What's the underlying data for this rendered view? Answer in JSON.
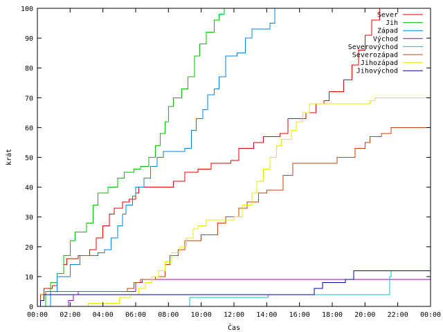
{
  "chart_data": {
    "type": "line",
    "title": "",
    "xlabel": "Čas",
    "ylabel": "krát",
    "xlim": [
      0,
      24
    ],
    "ylim": [
      0,
      100
    ],
    "x_ticks": [
      0,
      2,
      4,
      6,
      8,
      10,
      12,
      14,
      16,
      18,
      20,
      22,
      24
    ],
    "x_tick_labels": [
      "00:00",
      "02:00",
      "04:00",
      "06:00",
      "08:00",
      "10:00",
      "12:00",
      "14:00",
      "16:00",
      "18:00",
      "20:00",
      "22:00",
      "00:00"
    ],
    "y_ticks": [
      0,
      10,
      20,
      30,
      40,
      50,
      60,
      70,
      80,
      90,
      100
    ],
    "y_tick_labels": [
      "0",
      "10",
      "20",
      "30",
      "40",
      "50",
      "60",
      "70",
      "80",
      "90",
      "100"
    ],
    "grid": false,
    "legend_position": "top-right",
    "series": [
      {
        "name": "Sever",
        "color": "#e00000",
        "points": [
          [
            0,
            0
          ],
          [
            0.2,
            4
          ],
          [
            0.4,
            6
          ],
          [
            0.9,
            7
          ],
          [
            1.2,
            11
          ],
          [
            1.6,
            14
          ],
          [
            1.8,
            16
          ],
          [
            2.5,
            17
          ],
          [
            3.2,
            19
          ],
          [
            3.6,
            23
          ],
          [
            4.0,
            27
          ],
          [
            4.4,
            31
          ],
          [
            4.7,
            33
          ],
          [
            5.2,
            35
          ],
          [
            5.6,
            36
          ],
          [
            6.0,
            38
          ],
          [
            6.2,
            40
          ],
          [
            7.8,
            40
          ],
          [
            8.3,
            42
          ],
          [
            9.0,
            45
          ],
          [
            9.8,
            46
          ],
          [
            10.6,
            48
          ],
          [
            11.8,
            49
          ],
          [
            12.3,
            53
          ],
          [
            13.2,
            55
          ],
          [
            13.8,
            57
          ],
          [
            14.8,
            58
          ],
          [
            15.3,
            63
          ],
          [
            16.4,
            65
          ],
          [
            17.0,
            68
          ],
          [
            17.5,
            69
          ],
          [
            17.8,
            72
          ],
          [
            18.5,
            72
          ],
          [
            18.7,
            76
          ],
          [
            19.2,
            81
          ],
          [
            19.6,
            86
          ],
          [
            20.0,
            91
          ],
          [
            20.4,
            96
          ],
          [
            20.9,
            100
          ],
          [
            24,
            100
          ]
        ]
      },
      {
        "name": "Jih",
        "color": "#00c000",
        "points": [
          [
            0,
            0
          ],
          [
            0.3,
            0
          ],
          [
            0.5,
            4
          ],
          [
            0.8,
            8
          ],
          [
            1.2,
            11
          ],
          [
            1.6,
            17
          ],
          [
            2.0,
            22
          ],
          [
            2.3,
            25
          ],
          [
            3.0,
            28
          ],
          [
            3.4,
            34
          ],
          [
            3.7,
            38
          ],
          [
            4.3,
            40
          ],
          [
            4.9,
            43
          ],
          [
            5.3,
            45
          ],
          [
            5.9,
            46
          ],
          [
            6.3,
            47
          ],
          [
            6.8,
            50
          ],
          [
            7.2,
            54
          ],
          [
            7.5,
            58
          ],
          [
            7.8,
            62
          ],
          [
            8.0,
            67
          ],
          [
            8.3,
            70
          ],
          [
            8.8,
            73
          ],
          [
            9.2,
            77
          ],
          [
            9.6,
            84
          ],
          [
            9.9,
            88
          ],
          [
            10.3,
            92
          ],
          [
            10.8,
            96
          ],
          [
            11.1,
            98
          ],
          [
            11.4,
            100
          ],
          [
            24,
            100
          ]
        ]
      },
      {
        "name": "Západ",
        "color": "#0080e0",
        "points": [
          [
            0,
            0
          ],
          [
            0.5,
            0
          ],
          [
            0.8,
            5
          ],
          [
            1.2,
            10
          ],
          [
            2.0,
            14
          ],
          [
            2.6,
            17
          ],
          [
            3.7,
            18
          ],
          [
            4.1,
            19
          ],
          [
            4.5,
            23
          ],
          [
            4.9,
            27
          ],
          [
            5.2,
            31
          ],
          [
            5.4,
            34
          ],
          [
            5.8,
            37
          ],
          [
            6.0,
            40
          ],
          [
            6.5,
            43
          ],
          [
            6.9,
            47
          ],
          [
            7.3,
            50
          ],
          [
            7.7,
            52
          ],
          [
            9.0,
            53
          ],
          [
            9.4,
            59
          ],
          [
            9.7,
            63
          ],
          [
            10.1,
            66
          ],
          [
            10.4,
            71
          ],
          [
            10.8,
            73
          ],
          [
            11.1,
            77
          ],
          [
            11.5,
            84
          ],
          [
            12.2,
            85
          ],
          [
            12.7,
            90
          ],
          [
            13.1,
            93
          ],
          [
            14.2,
            95
          ],
          [
            14.5,
            100
          ],
          [
            24,
            100
          ]
        ]
      },
      {
        "name": "Východ",
        "color": "#a000c0",
        "points": [
          [
            0,
            0
          ],
          [
            1.8,
            0
          ],
          [
            1.9,
            2
          ],
          [
            2.2,
            4
          ],
          [
            2.5,
            5
          ],
          [
            5.9,
            5
          ],
          [
            6.0,
            8
          ],
          [
            6.4,
            9
          ],
          [
            16.5,
            9
          ],
          [
            24,
            9
          ]
        ]
      },
      {
        "name": "Severovýchod",
        "color": "#00c8c8",
        "points": [
          [
            0,
            0
          ],
          [
            9.2,
            0
          ],
          [
            9.3,
            3
          ],
          [
            14.0,
            3
          ],
          [
            14.1,
            4
          ],
          [
            21.3,
            4
          ],
          [
            21.5,
            10
          ],
          [
            21.6,
            12
          ],
          [
            24,
            12
          ]
        ]
      },
      {
        "name": "Severozápad",
        "color": "#c04000",
        "points": [
          [
            0,
            0
          ],
          [
            0.2,
            4
          ],
          [
            0.5,
            5
          ],
          [
            5.0,
            5
          ],
          [
            5.5,
            6
          ],
          [
            5.9,
            8
          ],
          [
            6.3,
            9
          ],
          [
            7.2,
            10
          ],
          [
            7.8,
            14
          ],
          [
            8.1,
            17
          ],
          [
            8.6,
            19
          ],
          [
            9.0,
            22
          ],
          [
            10.0,
            24
          ],
          [
            11.0,
            28
          ],
          [
            11.5,
            30
          ],
          [
            12.3,
            33
          ],
          [
            12.8,
            35
          ],
          [
            13.5,
            38
          ],
          [
            14.0,
            39
          ],
          [
            15.0,
            44
          ],
          [
            15.6,
            48
          ],
          [
            17.4,
            48
          ],
          [
            18.3,
            50
          ],
          [
            19.4,
            53
          ],
          [
            20.0,
            55
          ],
          [
            20.3,
            57
          ],
          [
            21.0,
            58
          ],
          [
            21.6,
            60
          ],
          [
            24,
            60
          ]
        ]
      },
      {
        "name": "Jihozápad",
        "color": "#e8e800",
        "points": [
          [
            0,
            0
          ],
          [
            2.8,
            0
          ],
          [
            3.1,
            1
          ],
          [
            4.6,
            1
          ],
          [
            5.0,
            3
          ],
          [
            5.7,
            4
          ],
          [
            6.2,
            6
          ],
          [
            6.6,
            8
          ],
          [
            7.0,
            10
          ],
          [
            7.4,
            12
          ],
          [
            7.8,
            15
          ],
          [
            8.2,
            18
          ],
          [
            8.7,
            20
          ],
          [
            9.1,
            23
          ],
          [
            9.5,
            26
          ],
          [
            9.8,
            27
          ],
          [
            10.3,
            29
          ],
          [
            12.0,
            30
          ],
          [
            12.5,
            34
          ],
          [
            13.1,
            38
          ],
          [
            13.4,
            42
          ],
          [
            13.8,
            46
          ],
          [
            14.2,
            50
          ],
          [
            14.6,
            54
          ],
          [
            14.9,
            56
          ],
          [
            15.5,
            59
          ],
          [
            15.8,
            62
          ],
          [
            16.2,
            65
          ],
          [
            16.6,
            68
          ],
          [
            17.0,
            68
          ],
          [
            20.3,
            69
          ],
          [
            20.6,
            70
          ],
          [
            24,
            70
          ]
        ]
      },
      {
        "name": "Jihovýchod",
        "color": "#0000a0",
        "points": [
          [
            0,
            0
          ],
          [
            0.2,
            2
          ],
          [
            0.4,
            4
          ],
          [
            16.6,
            4
          ],
          [
            16.9,
            6
          ],
          [
            17.4,
            8
          ],
          [
            18.8,
            9
          ],
          [
            19.3,
            12
          ],
          [
            24,
            12
          ]
        ]
      }
    ]
  }
}
